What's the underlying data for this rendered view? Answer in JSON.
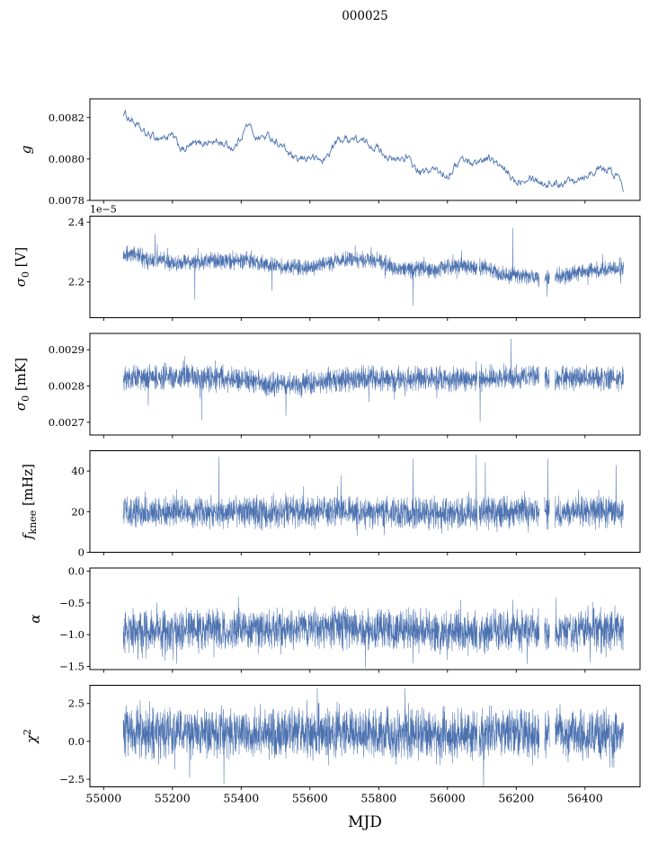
{
  "chart_data": {
    "type": "line",
    "title": "000025",
    "xlabel": "MJD",
    "line_color": "#4c72b0",
    "axis_color": "#000000",
    "xlim": [
      54960,
      56560
    ],
    "x_data_range": [
      55057,
      56512
    ],
    "xticks": [
      55000,
      55200,
      55400,
      55600,
      55800,
      56000,
      56200,
      56400
    ],
    "xtick_labels": [
      "55000",
      "55200",
      "55400",
      "55600",
      "55800",
      "56000",
      "56200",
      "56400"
    ],
    "panels": [
      {
        "id": "g",
        "ylabel_parts": [
          [
            "it",
            "g"
          ]
        ],
        "ylim": [
          0.0078,
          0.00829
        ],
        "yticks": [
          0.0078,
          0.008,
          0.0082
        ],
        "ytick_labels": [
          "0.0078",
          "0.0080",
          "0.0082"
        ],
        "profile": "smooth",
        "noise": 3.5e-05,
        "trend": [
          [
            55057,
            0.00822
          ],
          [
            55080,
            0.00819
          ],
          [
            55120,
            0.00812
          ],
          [
            55160,
            0.0081
          ],
          [
            55200,
            0.00811
          ],
          [
            55230,
            0.00804
          ],
          [
            55260,
            0.00807
          ],
          [
            55300,
            0.00808
          ],
          [
            55340,
            0.00808
          ],
          [
            55380,
            0.00805
          ],
          [
            55420,
            0.00817
          ],
          [
            55445,
            0.0081
          ],
          [
            55480,
            0.00811
          ],
          [
            55520,
            0.00806
          ],
          [
            55560,
            0.00799
          ],
          [
            55600,
            0.00801
          ],
          [
            55640,
            0.00799
          ],
          [
            55680,
            0.00809
          ],
          [
            55720,
            0.0081
          ],
          [
            55760,
            0.00808
          ],
          [
            55800,
            0.00805
          ],
          [
            55840,
            0.00799
          ],
          [
            55880,
            0.00801
          ],
          [
            55920,
            0.00793
          ],
          [
            55960,
            0.00795
          ],
          [
            56000,
            0.00792
          ],
          [
            56040,
            0.008
          ],
          [
            56080,
            0.00798
          ],
          [
            56120,
            0.00801
          ],
          [
            56160,
            0.00795
          ],
          [
            56200,
            0.00789
          ],
          [
            56240,
            0.00792
          ],
          [
            56280,
            0.00788
          ],
          [
            56320,
            0.00788
          ],
          [
            56360,
            0.0079
          ],
          [
            56400,
            0.00792
          ],
          [
            56440,
            0.00795
          ],
          [
            56475,
            0.00794
          ],
          [
            56500,
            0.00791
          ],
          [
            56512,
            0.00785
          ]
        ],
        "spikes": [],
        "gaps": []
      },
      {
        "id": "sigma0-V",
        "ylabel_parts": [
          [
            "it",
            "σ"
          ],
          [
            "sub",
            "0"
          ],
          [
            "n",
            " [V]"
          ]
        ],
        "offset": "1e−5",
        "ylim": [
          2.08,
          2.42
        ],
        "yticks": [
          2.2,
          2.4
        ],
        "ytick_labels": [
          "2.2",
          "2.4"
        ],
        "profile": "noisy",
        "noise": 0.033,
        "trend": [
          [
            55057,
            2.285
          ],
          [
            55090,
            2.3
          ],
          [
            55130,
            2.27
          ],
          [
            55170,
            2.275
          ],
          [
            55210,
            2.26
          ],
          [
            55250,
            2.265
          ],
          [
            55300,
            2.27
          ],
          [
            55350,
            2.27
          ],
          [
            55400,
            2.268
          ],
          [
            55430,
            2.275
          ],
          [
            55470,
            2.26
          ],
          [
            55520,
            2.252
          ],
          [
            55560,
            2.25
          ],
          [
            55600,
            2.248
          ],
          [
            55640,
            2.26
          ],
          [
            55680,
            2.27
          ],
          [
            55720,
            2.275
          ],
          [
            55760,
            2.275
          ],
          [
            55800,
            2.27
          ],
          [
            55840,
            2.25
          ],
          [
            55880,
            2.24
          ],
          [
            55920,
            2.245
          ],
          [
            55960,
            2.235
          ],
          [
            56000,
            2.25
          ],
          [
            56040,
            2.255
          ],
          [
            56080,
            2.25
          ],
          [
            56120,
            2.245
          ],
          [
            56160,
            2.225
          ],
          [
            56200,
            2.22
          ],
          [
            56240,
            2.215
          ],
          [
            56280,
            2.21
          ],
          [
            56320,
            2.22
          ],
          [
            56360,
            2.225
          ],
          [
            56400,
            2.235
          ],
          [
            56440,
            2.24
          ],
          [
            56480,
            2.245
          ],
          [
            56512,
            2.24
          ]
        ],
        "spikes": [
          [
            55150,
            2.36
          ],
          [
            55265,
            2.14
          ],
          [
            55490,
            2.17
          ],
          [
            55900,
            2.12
          ],
          [
            56190,
            2.38
          ],
          [
            56290,
            2.15
          ]
        ],
        "gaps": [
          [
            56087,
            56092
          ],
          [
            56267,
            56282
          ],
          [
            56297,
            56313
          ]
        ]
      },
      {
        "id": "sigma0-mK",
        "ylabel_parts": [
          [
            "it",
            "σ"
          ],
          [
            "sub",
            "0"
          ],
          [
            "n",
            " [mK]"
          ]
        ],
        "ylim": [
          0.002665,
          0.002945
        ],
        "yticks": [
          0.0027,
          0.0028,
          0.0029
        ],
        "ytick_labels": [
          "0.0027",
          "0.0028",
          "0.0029"
        ],
        "profile": "noisy",
        "noise": 4e-05,
        "trend": [
          [
            55057,
            0.00282
          ],
          [
            55200,
            0.002825
          ],
          [
            55350,
            0.002822
          ],
          [
            55500,
            0.002805
          ],
          [
            55600,
            0.002808
          ],
          [
            55700,
            0.002818
          ],
          [
            55800,
            0.002822
          ],
          [
            55900,
            0.002818
          ],
          [
            56000,
            0.00282
          ],
          [
            56100,
            0.002818
          ],
          [
            56200,
            0.002825
          ],
          [
            56300,
            0.00282
          ],
          [
            56400,
            0.002825
          ],
          [
            56512,
            0.00282
          ]
        ],
        "spikes": [
          [
            55130,
            0.002745
          ],
          [
            55285,
            0.002705
          ],
          [
            55530,
            0.002718
          ],
          [
            56095,
            0.002702
          ],
          [
            56185,
            0.00293
          ]
        ],
        "gaps": [
          [
            56087,
            56092
          ],
          [
            56267,
            56282
          ],
          [
            56297,
            56313
          ]
        ]
      },
      {
        "id": "fknee",
        "ylabel_parts": [
          [
            "it",
            "f"
          ],
          [
            "sub",
            "knee"
          ],
          [
            "n",
            " [mHz]"
          ]
        ],
        "ylim": [
          0,
          50
        ],
        "yticks": [
          0,
          20,
          40
        ],
        "ytick_labels": [
          "0",
          "20",
          "40"
        ],
        "profile": "noisy",
        "noise": 9,
        "trend": [
          [
            55057,
            20
          ],
          [
            55300,
            19.5
          ],
          [
            55600,
            20
          ],
          [
            55900,
            19
          ],
          [
            56200,
            19.5
          ],
          [
            56512,
            20
          ]
        ],
        "spikes": [
          [
            55335,
            47
          ],
          [
            55690,
            38
          ],
          [
            55900,
            46
          ],
          [
            56084,
            48
          ],
          [
            56110,
            44
          ],
          [
            56292,
            46
          ],
          [
            56490,
            43
          ]
        ],
        "gaps": [
          [
            56087,
            56092
          ],
          [
            56267,
            56282
          ],
          [
            56297,
            56313
          ]
        ]
      },
      {
        "id": "alpha",
        "ylabel_parts": [
          [
            "it",
            "α"
          ]
        ],
        "ylim": [
          -1.55,
          0.05
        ],
        "yticks": [
          0.0,
          -0.5,
          -1.0,
          -1.5
        ],
        "ytick_labels": [
          "0.0",
          "−0.5",
          "−1.0",
          "−1.5"
        ],
        "profile": "noisy",
        "noise": 0.38,
        "trend": [
          [
            55057,
            -0.95
          ],
          [
            55400,
            -0.93
          ],
          [
            55700,
            -0.9
          ],
          [
            56000,
            -0.95
          ],
          [
            56300,
            -0.95
          ],
          [
            56512,
            -0.93
          ]
        ],
        "spikes": [
          [
            55900,
            -1.45
          ],
          [
            56190,
            -0.45
          ]
        ],
        "gaps": [
          [
            56087,
            56092
          ],
          [
            56267,
            56282
          ],
          [
            56297,
            56313
          ]
        ]
      },
      {
        "id": "chi2",
        "ylabel_parts": [
          [
            "it",
            "χ"
          ],
          [
            "sup",
            "2"
          ]
        ],
        "ylim": [
          -3.0,
          3.7
        ],
        "yticks": [
          2.5,
          0.0,
          -2.5
        ],
        "ytick_labels": [
          "2.5",
          "0.0",
          "−2.5"
        ],
        "profile": "noisy",
        "noise": 1.9,
        "trend": [
          [
            55057,
            0.55
          ],
          [
            55400,
            0.5
          ],
          [
            55700,
            0.55
          ],
          [
            56000,
            0.5
          ],
          [
            56300,
            0.55
          ],
          [
            56512,
            0.5
          ]
        ],
        "spikes": [
          [
            55250,
            -2.4
          ],
          [
            55350,
            -2.8
          ],
          [
            56105,
            -3.0
          ]
        ],
        "gaps": [
          [
            56087,
            56092
          ],
          [
            56267,
            56282
          ],
          [
            56297,
            56313
          ]
        ]
      }
    ]
  }
}
